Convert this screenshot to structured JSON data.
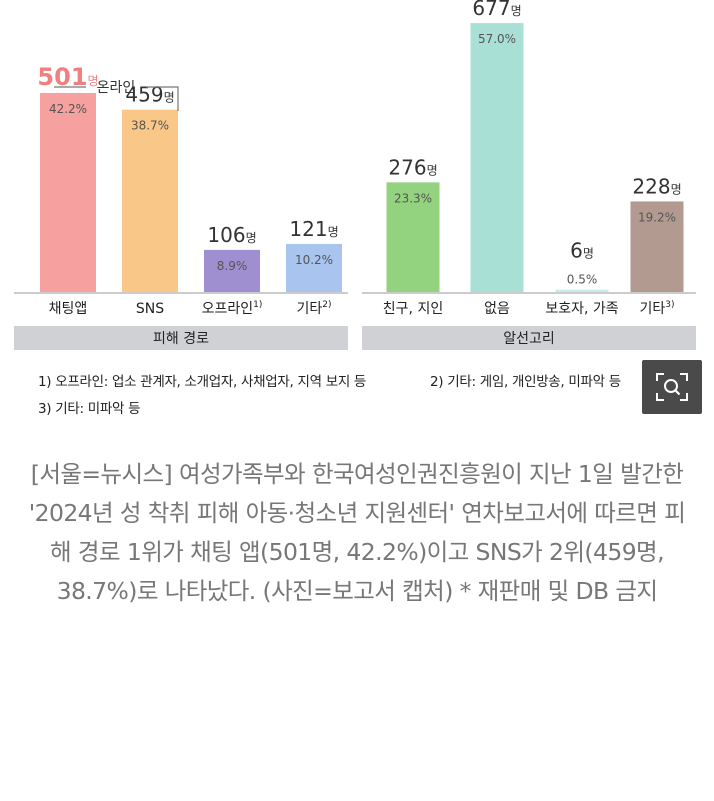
{
  "colors": {
    "chat_app": "#f6a0a0",
    "sns": "#f9c787",
    "offline": "#9f8fd0",
    "etc1": "#a8c4ef",
    "friend": "#93d27e",
    "none": "#a9e0d5",
    "guardian": "#c8ecec",
    "etc2": "#b29a90",
    "group_bar": "#cfd1d5",
    "bracket": "#777777",
    "highlight_text": "#f08080"
  },
  "chart_data": [
    {
      "type": "bar",
      "group_label": "피해 경로",
      "bracket_label": "온라인",
      "bracket_covers": [
        "채팅앱",
        "SNS"
      ],
      "categories": [
        "채팅앱",
        "SNS",
        "오프라인",
        "기타"
      ],
      "category_superscripts": [
        "",
        "",
        "1)",
        "2)"
      ],
      "values": [
        501,
        459,
        106,
        121
      ],
      "unit": "명",
      "value_labels": [
        "501",
        "459",
        "106",
        "121"
      ],
      "percent_labels": [
        "42.2%",
        "38.7%",
        "8.9%",
        "10.2%"
      ],
      "color_keys": [
        "chat_app",
        "sns",
        "offline",
        "etc1"
      ],
      "highlight_index": 0,
      "ylim": [
        0,
        700
      ]
    },
    {
      "type": "bar",
      "group_label": "알선고리",
      "categories": [
        "친구, 지인",
        "없음",
        "보호자, 가족",
        "기타"
      ],
      "category_superscripts": [
        "",
        "",
        "",
        "3)"
      ],
      "values": [
        276,
        677,
        6,
        228
      ],
      "unit": "명",
      "value_labels": [
        "276",
        "677",
        "6",
        "228"
      ],
      "percent_labels": [
        "23.3%",
        "57.0%",
        "0.5%",
        "19.2%"
      ],
      "color_keys": [
        "friend",
        "none",
        "guardian",
        "etc2"
      ],
      "highlight_index": -1,
      "ylim": [
        0,
        700
      ]
    }
  ],
  "footnotes": {
    "note1": "1) 오프라인: 업소 관계자, 소개업자, 사채업자, 지역 ",
    "note1_cut": "보지 등",
    "note2": "2) 기타: 게임, 개인방송, 미파악 등",
    "note3": "3) 기타: 미파악 등"
  },
  "zoom_icon": "zoom-search-icon",
  "caption": "[서울=뉴시스] 여성가족부와 한국여성인권진흥원이 지난 1일 발간한 '2024년 성 착취 피해 아동·청소년 지원센터' 연차보고서에 따르면 피해 경로 1위가 채팅 앱(501명, 42.2%)이고 SNS가 2위(459명, 38.7%)로 나타났다. (사진=보고서 캡처) * 재판매 및 DB 금지"
}
